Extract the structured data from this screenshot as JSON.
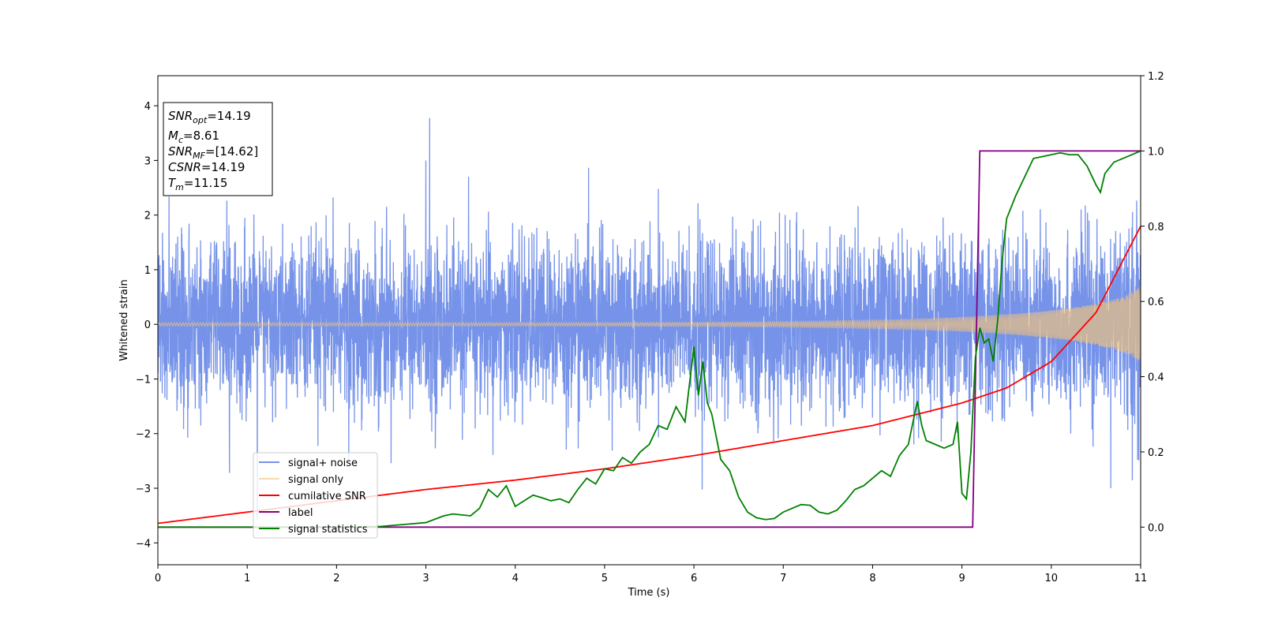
{
  "chart_data": {
    "type": "line",
    "title": "",
    "xlabel": "Time (s)",
    "ylabel": "Whitened strain",
    "y2label": "",
    "xlim": [
      0,
      11
    ],
    "ylim": [
      -4.4,
      4.55
    ],
    "y2lim": [
      -0.1,
      1.2
    ],
    "xticks": [
      "0",
      "1",
      "2",
      "3",
      "4",
      "5",
      "6",
      "7",
      "8",
      "9",
      "10",
      "11"
    ],
    "yticks": [
      "−4",
      "−3",
      "−2",
      "−1",
      "0",
      "1",
      "2",
      "3",
      "4"
    ],
    "y2ticks": [
      "0.0",
      "0.2",
      "0.4",
      "0.6",
      "0.8",
      "1.0",
      "1.2"
    ],
    "grid": false,
    "legend_position": "lower-left",
    "annotation": {
      "lines": [
        {
          "base": "SNR",
          "sub": "opt",
          "rest": "=14.19"
        },
        {
          "base": "M",
          "sub": "c",
          "rest": "=8.61"
        },
        {
          "base": "SNR",
          "sub": "MF",
          "rest": "=[14.62]"
        },
        {
          "base": "CSNR",
          "sub": "",
          "rest": "=14.19"
        },
        {
          "base": "T",
          "sub": "m",
          "rest": "=11.15"
        }
      ]
    },
    "series": [
      {
        "name": "signal+ noise",
        "axis": "left",
        "color": "#4169e1",
        "description_kind": "noise",
        "noise_std": 0.75,
        "noise_peak": 4.18
      },
      {
        "name": "signal only",
        "axis": "left",
        "color": "#f5c37a",
        "description_kind": "chirp",
        "amplitude_start": 0.03,
        "amplitude_end": 0.7,
        "merger_time": 11.15
      },
      {
        "name": "cumilative SNR",
        "axis": "right",
        "color": "#ff0000",
        "x": [
          0,
          1,
          2,
          3,
          4,
          5,
          6,
          7,
          8,
          9,
          9.5,
          10,
          10.5,
          11
        ],
        "y": [
          0.01,
          0.04,
          0.07,
          0.1,
          0.125,
          0.155,
          0.19,
          0.23,
          0.27,
          0.33,
          0.37,
          0.44,
          0.57,
          0.8
        ]
      },
      {
        "name": "label",
        "axis": "right",
        "color": "#800080",
        "x": [
          0,
          9.12,
          9.2,
          11
        ],
        "y": [
          0,
          0,
          1,
          1
        ]
      },
      {
        "name": "signal statistics",
        "axis": "right",
        "color": "#008000",
        "x": [
          0,
          1,
          2,
          2.5,
          2.8,
          3.0,
          3.2,
          3.3,
          3.5,
          3.6,
          3.7,
          3.8,
          3.9,
          4.0,
          4.1,
          4.2,
          4.3,
          4.4,
          4.5,
          4.6,
          4.7,
          4.8,
          4.9,
          5.0,
          5.1,
          5.2,
          5.3,
          5.4,
          5.5,
          5.6,
          5.7,
          5.8,
          5.9,
          6.0,
          6.05,
          6.1,
          6.15,
          6.2,
          6.3,
          6.4,
          6.5,
          6.6,
          6.7,
          6.8,
          6.9,
          7.0,
          7.1,
          7.2,
          7.3,
          7.4,
          7.5,
          7.6,
          7.7,
          7.8,
          7.9,
          8.0,
          8.1,
          8.2,
          8.3,
          8.4,
          8.5,
          8.55,
          8.6,
          8.7,
          8.8,
          8.9,
          8.95,
          9.0,
          9.05,
          9.1,
          9.15,
          9.2,
          9.25,
          9.3,
          9.35,
          9.4,
          9.45,
          9.5,
          9.6,
          9.7,
          9.8,
          9.9,
          10.0,
          10.1,
          10.2,
          10.3,
          10.4,
          10.5,
          10.55,
          10.6,
          10.7,
          10.8,
          10.9,
          11.0
        ],
        "y": [
          0,
          0,
          0,
          0.002,
          0.008,
          0.012,
          0.03,
          0.035,
          0.03,
          0.05,
          0.1,
          0.08,
          0.11,
          0.055,
          0.07,
          0.085,
          0.078,
          0.07,
          0.075,
          0.065,
          0.1,
          0.13,
          0.115,
          0.155,
          0.15,
          0.185,
          0.17,
          0.2,
          0.22,
          0.27,
          0.26,
          0.32,
          0.28,
          0.48,
          0.35,
          0.44,
          0.33,
          0.3,
          0.18,
          0.15,
          0.08,
          0.04,
          0.025,
          0.02,
          0.023,
          0.04,
          0.05,
          0.06,
          0.058,
          0.04,
          0.035,
          0.045,
          0.07,
          0.1,
          0.11,
          0.13,
          0.15,
          0.135,
          0.19,
          0.22,
          0.335,
          0.27,
          0.23,
          0.22,
          0.21,
          0.22,
          0.28,
          0.09,
          0.075,
          0.2,
          0.45,
          0.53,
          0.49,
          0.5,
          0.44,
          0.55,
          0.71,
          0.82,
          0.88,
          0.93,
          0.98,
          0.985,
          0.99,
          0.995,
          0.99,
          0.99,
          0.96,
          0.91,
          0.89,
          0.94,
          0.97,
          0.98,
          0.99,
          1.0
        ]
      }
    ]
  }
}
